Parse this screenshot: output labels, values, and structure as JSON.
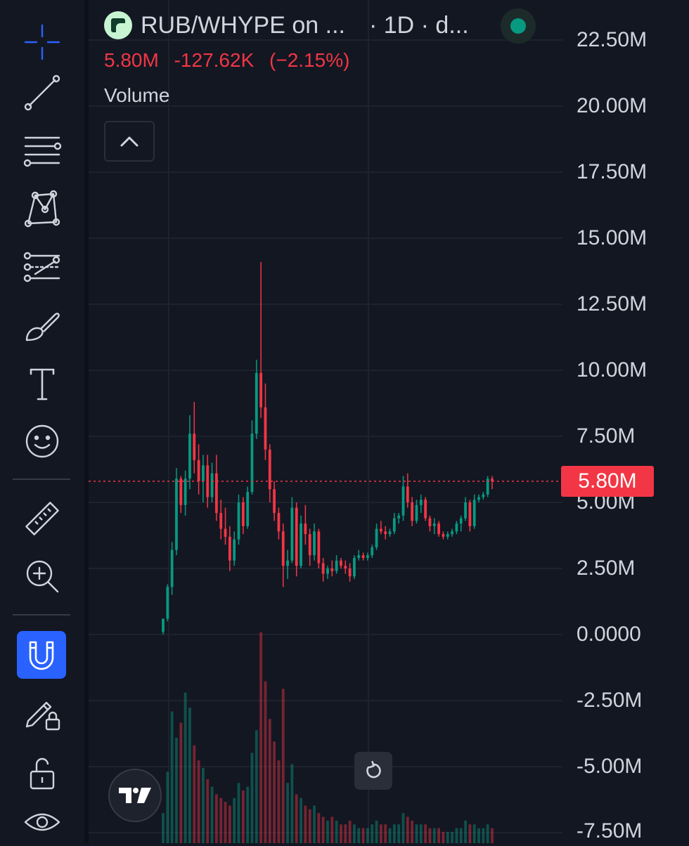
{
  "legend": {
    "symbol": "RUB/WHYPE on ...",
    "interval": "· 1D · d...",
    "last_value": "5.80M",
    "change": "-127.62K",
    "change_pct": "(−2.15%)",
    "volume_label": "Volume"
  },
  "price_axis": {
    "labels": [
      "22.50M",
      "20.00M",
      "17.50M",
      "15.00M",
      "12.50M",
      "10.00M",
      "7.50M",
      "5.00M",
      "2.50M",
      "0.0000",
      "-2.50M",
      "-5.00M",
      "-7.50M"
    ],
    "current_price_tag": "5.80M"
  },
  "colors": {
    "background": "#131722",
    "up": "#089981",
    "down": "#f23645",
    "grid": "#1e222d",
    "accent": "#2962ff"
  },
  "toolbar": {
    "icons": [
      "crosshair-icon",
      "trend-line-icon",
      "fib-retracement-icon",
      "xabcd-pattern-icon",
      "forecast-icon",
      "brush-icon",
      "text-icon",
      "emoji-icon",
      "ruler-icon",
      "zoom-in-icon",
      "magnet-icon",
      "lock-drawings-icon",
      "unlock-icon",
      "eye-icon"
    ],
    "active": "magnet-icon"
  },
  "chart_data": {
    "type": "candlestick",
    "y_unit": "M",
    "ylim": [
      -7.5,
      22.5
    ],
    "current_price": 5.8,
    "candles": [
      [
        0.1,
        0.6,
        0.0,
        0.6
      ],
      [
        0.6,
        1.9,
        0.5,
        1.8
      ],
      [
        1.8,
        3.5,
        1.5,
        3.2
      ],
      [
        3.2,
        6.3,
        3.0,
        5.9
      ],
      [
        5.9,
        6.0,
        4.6,
        4.9
      ],
      [
        4.9,
        6.2,
        4.5,
        5.9
      ],
      [
        5.9,
        8.3,
        5.5,
        7.6
      ],
      [
        7.6,
        8.8,
        6.1,
        6.6
      ],
      [
        6.6,
        7.2,
        5.3,
        5.8
      ],
      [
        5.8,
        6.8,
        5.0,
        6.4
      ],
      [
        6.4,
        6.8,
        4.8,
        5.2
      ],
      [
        5.2,
        6.5,
        5.0,
        6.1
      ],
      [
        6.1,
        6.8,
        4.3,
        4.6
      ],
      [
        4.6,
        5.1,
        3.6,
        4.0
      ],
      [
        4.0,
        4.8,
        3.4,
        3.7
      ],
      [
        3.7,
        4.1,
        2.4,
        2.8
      ],
      [
        2.8,
        3.9,
        2.6,
        3.6
      ],
      [
        3.6,
        5.3,
        3.4,
        5.0
      ],
      [
        5.0,
        5.2,
        3.8,
        4.1
      ],
      [
        4.1,
        5.6,
        4.0,
        5.4
      ],
      [
        5.4,
        8.1,
        5.3,
        7.6
      ],
      [
        7.6,
        10.4,
        7.4,
        9.9
      ],
      [
        9.9,
        14.1,
        8.2,
        8.6
      ],
      [
        8.6,
        9.5,
        6.6,
        7.0
      ],
      [
        7.0,
        7.2,
        5.0,
        5.5
      ],
      [
        5.5,
        5.8,
        4.3,
        4.6
      ],
      [
        4.6,
        4.8,
        3.6,
        3.9
      ],
      [
        3.9,
        4.2,
        1.8,
        2.6
      ],
      [
        2.6,
        3.2,
        2.1,
        2.8
      ],
      [
        2.8,
        5.2,
        2.7,
        4.8
      ],
      [
        4.8,
        5.0,
        2.2,
        2.6
      ],
      [
        2.6,
        4.5,
        2.5,
        4.2
      ],
      [
        4.2,
        4.9,
        3.4,
        3.8
      ],
      [
        3.8,
        4.0,
        2.6,
        3.0
      ],
      [
        3.0,
        4.2,
        2.8,
        3.9
      ],
      [
        3.9,
        4.0,
        2.5,
        2.7
      ],
      [
        2.7,
        2.9,
        2.0,
        2.3
      ],
      [
        2.3,
        2.6,
        2.1,
        2.5
      ],
      [
        2.5,
        2.8,
        2.2,
        2.4
      ],
      [
        2.4,
        3.0,
        2.3,
        2.8
      ],
      [
        2.8,
        2.9,
        2.5,
        2.6
      ],
      [
        2.6,
        2.8,
        2.3,
        2.5
      ],
      [
        2.5,
        2.7,
        2.0,
        2.2
      ],
      [
        2.2,
        3.0,
        2.1,
        2.9
      ],
      [
        2.9,
        3.2,
        2.8,
        3.0
      ],
      [
        3.0,
        3.1,
        2.8,
        2.9
      ],
      [
        2.9,
        3.1,
        2.8,
        3.0
      ],
      [
        3.0,
        3.4,
        2.9,
        3.3
      ],
      [
        3.3,
        4.2,
        3.2,
        4.0
      ],
      [
        4.0,
        4.3,
        3.8,
        3.9
      ],
      [
        3.9,
        4.1,
        3.6,
        3.8
      ],
      [
        3.8,
        4.0,
        3.7,
        3.9
      ],
      [
        3.9,
        4.6,
        3.8,
        4.4
      ],
      [
        4.4,
        4.6,
        4.2,
        4.5
      ],
      [
        4.5,
        6.0,
        4.3,
        5.6
      ],
      [
        5.6,
        6.1,
        4.8,
        5.0
      ],
      [
        5.0,
        5.2,
        4.1,
        4.3
      ],
      [
        4.3,
        5.1,
        4.2,
        4.9
      ],
      [
        4.9,
        5.3,
        4.6,
        5.1
      ],
      [
        5.1,
        5.2,
        4.3,
        4.4
      ],
      [
        4.4,
        4.5,
        3.9,
        4.1
      ],
      [
        4.1,
        4.4,
        3.8,
        4.2
      ],
      [
        4.2,
        4.3,
        3.7,
        3.8
      ],
      [
        3.8,
        3.9,
        3.6,
        3.7
      ],
      [
        3.7,
        3.9,
        3.6,
        3.8
      ],
      [
        3.8,
        4.0,
        3.7,
        3.9
      ],
      [
        3.9,
        4.3,
        3.8,
        4.2
      ],
      [
        4.2,
        4.5,
        3.9,
        4.4
      ],
      [
        4.4,
        5.2,
        4.3,
        5.0
      ],
      [
        5.0,
        5.1,
        3.9,
        4.1
      ],
      [
        4.1,
        5.3,
        4.0,
        5.1
      ],
      [
        5.1,
        5.3,
        5.0,
        5.2
      ],
      [
        5.2,
        5.4,
        5.1,
        5.3
      ],
      [
        5.3,
        6.0,
        5.2,
        5.9
      ],
      [
        5.9,
        6.0,
        5.5,
        5.8
      ]
    ],
    "volume": [
      0.8,
      1.9,
      3.5,
      2.8,
      3.2,
      4.0,
      3.6,
      2.6,
      2.2,
      2.0,
      1.7,
      1.5,
      1.3,
      1.2,
      1.1,
      1.0,
      1.2,
      1.6,
      1.4,
      1.5,
      2.4,
      3.0,
      5.6,
      4.3,
      3.3,
      2.7,
      2.2,
      4.1,
      1.6,
      2.1,
      1.3,
      1.2,
      1.0,
      0.9,
      1.0,
      0.8,
      0.7,
      0.6,
      0.7,
      0.6,
      0.5,
      0.5,
      0.6,
      0.5,
      0.4,
      0.4,
      0.4,
      0.5,
      0.6,
      0.5,
      0.5,
      0.4,
      0.5,
      0.5,
      0.8,
      0.7,
      0.6,
      0.5,
      0.5,
      0.5,
      0.4,
      0.4,
      0.4,
      0.3,
      0.3,
      0.3,
      0.4,
      0.4,
      0.6,
      0.5,
      0.5,
      0.4,
      0.4,
      0.5,
      0.4
    ]
  }
}
